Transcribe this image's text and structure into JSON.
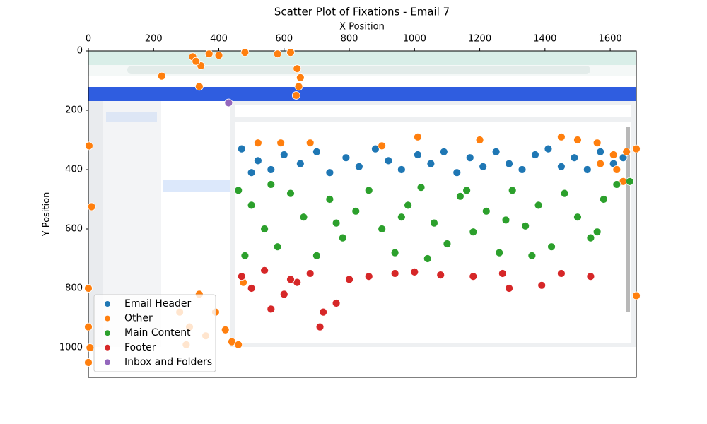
{
  "chart_data": {
    "type": "scatter",
    "title": "Scatter Plot of Fixations - Email 7",
    "xlabel": "X Position",
    "ylabel": "Y Position",
    "xlim": [
      0,
      1680
    ],
    "ylim": [
      0,
      1100
    ],
    "y_inverted": true,
    "x_axis_position": "top",
    "xticks": [
      0,
      200,
      400,
      600,
      800,
      1000,
      1200,
      1400,
      1600
    ],
    "yticks": [
      0,
      200,
      400,
      600,
      800,
      1000
    ],
    "legend_position": "lower left",
    "series": [
      {
        "name": "Email Header",
        "color": "#1f77b4",
        "x": [
          470,
          520,
          560,
          600,
          650,
          700,
          740,
          790,
          830,
          880,
          920,
          960,
          1010,
          1050,
          1090,
          1130,
          1170,
          1210,
          1250,
          1290,
          1330,
          1370,
          1410,
          1450,
          1490,
          1530,
          1570,
          1610,
          1640,
          500
        ],
        "y": [
          330,
          370,
          400,
          350,
          380,
          340,
          410,
          360,
          390,
          330,
          370,
          400,
          350,
          380,
          340,
          410,
          360,
          390,
          340,
          380,
          400,
          350,
          330,
          390,
          360,
          400,
          340,
          380,
          360,
          410
        ]
      },
      {
        "name": "Other",
        "color": "#ff7f0e",
        "x": [
          320,
          345,
          370,
          330,
          400,
          480,
          580,
          620,
          640,
          650,
          645,
          225,
          340,
          637,
          520,
          590,
          680,
          900,
          1010,
          1200,
          1450,
          1500,
          1560,
          1610,
          1650,
          1680,
          1570,
          1620,
          2,
          10,
          0,
          0,
          5,
          0,
          280,
          310,
          340,
          360,
          390,
          420,
          440,
          460,
          475,
          300,
          1680,
          1640
        ],
        "y": [
          20,
          50,
          10,
          35,
          15,
          5,
          10,
          5,
          60,
          90,
          120,
          85,
          120,
          150,
          310,
          310,
          310,
          320,
          290,
          300,
          290,
          300,
          310,
          350,
          340,
          330,
          380,
          400,
          320,
          525,
          800,
          930,
          1000,
          1050,
          880,
          930,
          820,
          960,
          880,
          940,
          980,
          990,
          780,
          990,
          825,
          440
        ]
      },
      {
        "name": "Main Content",
        "color": "#2ca02c",
        "x": [
          460,
          500,
          540,
          580,
          620,
          660,
          700,
          740,
          780,
          820,
          860,
          900,
          940,
          980,
          1020,
          1060,
          1100,
          1140,
          1180,
          1220,
          1260,
          1300,
          1340,
          1380,
          1420,
          1460,
          1500,
          1540,
          1580,
          1620,
          1660,
          480,
          560,
          760,
          960,
          1160,
          1360,
          1560,
          1280,
          1040
        ],
        "y": [
          470,
          520,
          600,
          660,
          480,
          560,
          690,
          500,
          630,
          540,
          470,
          600,
          680,
          520,
          460,
          580,
          650,
          490,
          610,
          540,
          680,
          470,
          590,
          520,
          660,
          480,
          560,
          630,
          500,
          450,
          440,
          690,
          450,
          580,
          560,
          470,
          690,
          610,
          570,
          700
        ]
      },
      {
        "name": "Footer",
        "color": "#d62728",
        "x": [
          470,
          500,
          540,
          560,
          600,
          640,
          680,
          720,
          760,
          800,
          860,
          940,
          1000,
          1080,
          1180,
          1270,
          1290,
          1390,
          1450,
          1540,
          710,
          620
        ],
        "y": [
          760,
          800,
          740,
          870,
          820,
          780,
          750,
          880,
          850,
          770,
          760,
          750,
          745,
          755,
          760,
          750,
          800,
          790,
          750,
          760,
          930,
          770
        ]
      },
      {
        "name": "Inbox and Folders",
        "color": "#9467bd",
        "x": [
          430
        ],
        "y": [
          175
        ]
      }
    ]
  }
}
